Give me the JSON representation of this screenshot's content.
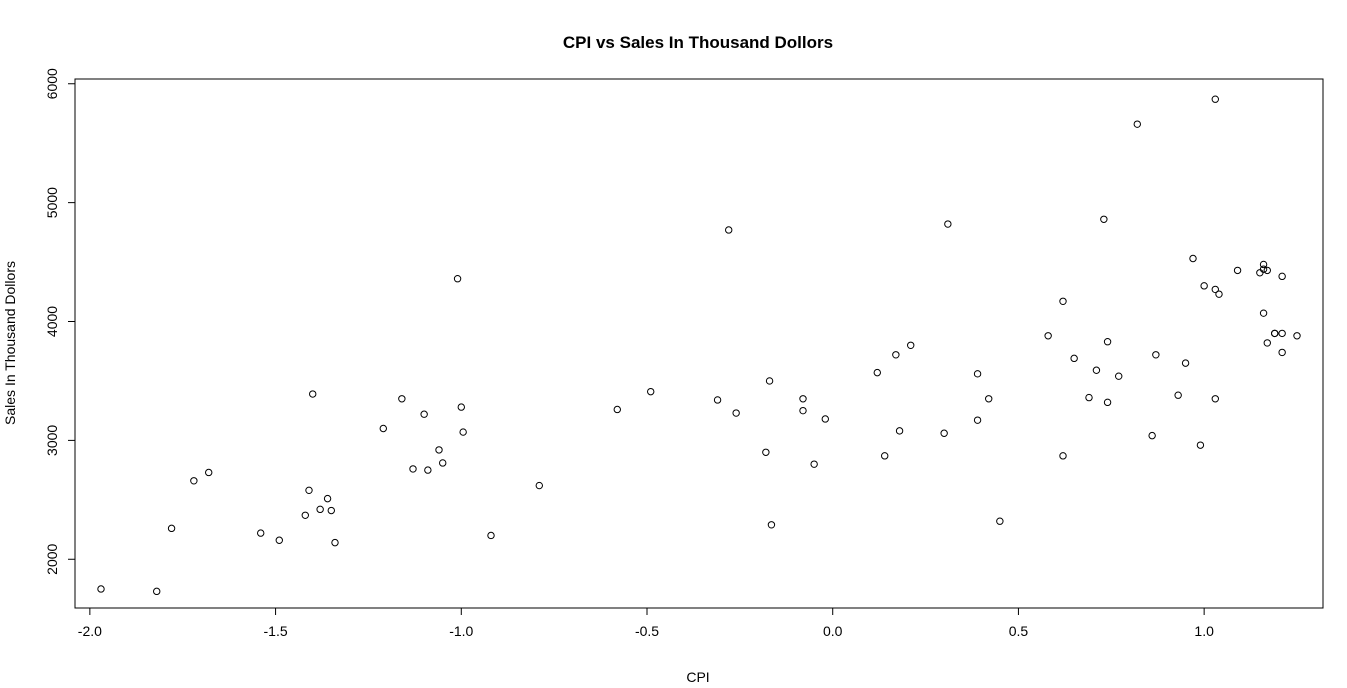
{
  "chart_data": {
    "type": "scatter",
    "title": "CPI vs Sales In Thousand Dollors",
    "xlabel": "CPI",
    "ylabel": "Sales In Thousand Dollors",
    "xlim": [
      -2.04,
      1.32
    ],
    "ylim": [
      1590,
      6040
    ],
    "xticks": [
      -2.0,
      -1.5,
      -1.0,
      -0.5,
      0.0,
      0.5,
      1.0
    ],
    "xtick_labels": [
      "-2.0",
      "-1.5",
      "-1.0",
      "-0.5",
      "0.0",
      "0.5",
      "1.0"
    ],
    "yticks": [
      2000,
      3000,
      4000,
      5000,
      6000
    ],
    "ytick_labels": [
      "2000",
      "3000",
      "4000",
      "5000",
      "6000"
    ],
    "grid": false,
    "marker": "open-circle",
    "points": [
      [
        -1.97,
        1750
      ],
      [
        -1.82,
        1730
      ],
      [
        -1.78,
        2260
      ],
      [
        -1.72,
        2660
      ],
      [
        -1.68,
        2730
      ],
      [
        -1.54,
        2220
      ],
      [
        -1.49,
        2160
      ],
      [
        -1.42,
        2370
      ],
      [
        -1.41,
        2580
      ],
      [
        -1.4,
        3390
      ],
      [
        -1.38,
        2420
      ],
      [
        -1.36,
        2510
      ],
      [
        -1.35,
        2410
      ],
      [
        -1.34,
        2140
      ],
      [
        -1.21,
        3100
      ],
      [
        -1.16,
        3350
      ],
      [
        -1.13,
        2760
      ],
      [
        -1.1,
        3220
      ],
      [
        -1.09,
        2750
      ],
      [
        -1.06,
        2920
      ],
      [
        -1.05,
        2810
      ],
      [
        -1.01,
        4360
      ],
      [
        -1.0,
        3280
      ],
      [
        -0.995,
        3070
      ],
      [
        -0.92,
        2200
      ],
      [
        -0.79,
        2620
      ],
      [
        -0.58,
        3260
      ],
      [
        -0.49,
        3410
      ],
      [
        -0.31,
        3340
      ],
      [
        -0.28,
        4770
      ],
      [
        -0.26,
        3230
      ],
      [
        -0.18,
        2900
      ],
      [
        -0.17,
        3500
      ],
      [
        -0.165,
        2290
      ],
      [
        -0.08,
        3350
      ],
      [
        -0.08,
        3250
      ],
      [
        -0.05,
        2800
      ],
      [
        -0.02,
        3180
      ],
      [
        0.12,
        3570
      ],
      [
        0.14,
        2870
      ],
      [
        0.17,
        3720
      ],
      [
        0.18,
        3080
      ],
      [
        0.21,
        3800
      ],
      [
        0.3,
        3060
      ],
      [
        0.31,
        4820
      ],
      [
        0.39,
        3560
      ],
      [
        0.39,
        3170
      ],
      [
        0.42,
        3350
      ],
      [
        0.45,
        2320
      ],
      [
        0.58,
        3880
      ],
      [
        0.62,
        4170
      ],
      [
        0.62,
        2870
      ],
      [
        0.65,
        3690
      ],
      [
        0.69,
        3360
      ],
      [
        0.71,
        3590
      ],
      [
        0.73,
        4860
      ],
      [
        0.74,
        3320
      ],
      [
        0.74,
        3830
      ],
      [
        0.77,
        3540
      ],
      [
        0.82,
        5660
      ],
      [
        0.86,
        3040
      ],
      [
        0.87,
        3720
      ],
      [
        0.93,
        3380
      ],
      [
        0.95,
        3650
      ],
      [
        0.97,
        4530
      ],
      [
        0.99,
        2960
      ],
      [
        1.0,
        4300
      ],
      [
        1.03,
        5870
      ],
      [
        1.03,
        4270
      ],
      [
        1.04,
        4230
      ],
      [
        1.03,
        3350
      ],
      [
        1.09,
        4430
      ],
      [
        1.15,
        4410
      ],
      [
        1.16,
        4440
      ],
      [
        1.16,
        4480
      ],
      [
        1.16,
        4070
      ],
      [
        1.17,
        4430
      ],
      [
        1.17,
        3820
      ],
      [
        1.19,
        3900
      ],
      [
        1.19,
        3900
      ],
      [
        1.21,
        4380
      ],
      [
        1.21,
        3900
      ],
      [
        1.21,
        3740
      ],
      [
        1.25,
        3880
      ]
    ]
  }
}
